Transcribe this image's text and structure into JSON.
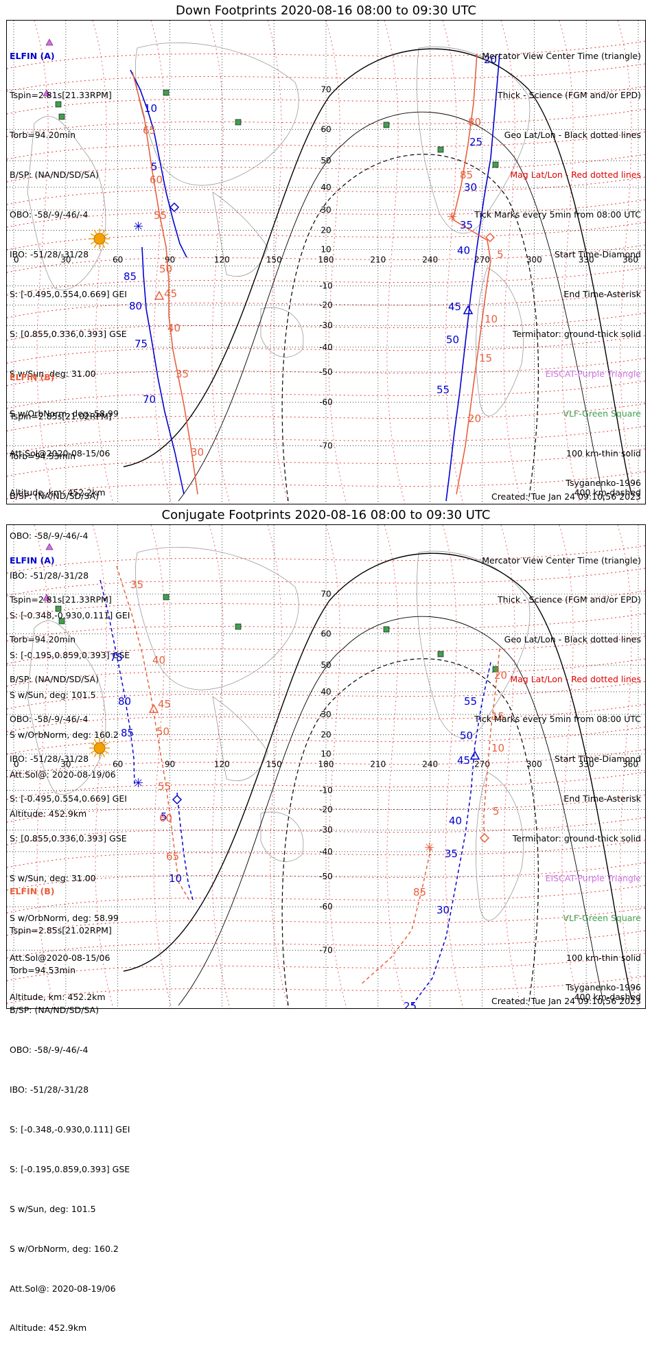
{
  "panels": [
    {
      "title": "Down Footprints 2020-08-16 08:00 to 09:30 UTC",
      "elfin_a": {
        "header": "ELFIN (A)",
        "lines": [
          "Tspin=2.81s[21.33RPM]",
          "Torb=94.20min",
          "B/SP: (NA/ND/SD/SA)",
          "OBO: -58/-9/-46/-4",
          "IBO: -51/28/-31/28",
          "S: [-0.495,0.554,0.669] GEI",
          "S: [0.855,0.336,0.393] GSE",
          "S w/Sun, deg: 31.00",
          "S w/OrbNorm, deg: 58.99",
          "Att.Sol@2020-08-15/06",
          "Altitude, km: 452.2km"
        ]
      },
      "elfin_b": {
        "header": "ELFIN (B)",
        "lines": [
          "Tspin=2.85s[21.02RPM]",
          "Torb=94.53min",
          "B/SP: (NA/ND/SD/SA)",
          "OBO: -58/-9/-46/-4",
          "IBO: -51/28/-31/28",
          "S: [-0.348,-0.930,0.111] GEI",
          "S: [-0.195,0.859,0.393] GSE",
          "S w/Sun, deg: 101.5",
          "S w/OrbNorm, deg: 160.2",
          "Att.Sol@: 2020-08-19/06",
          "Altitude: 452.9km"
        ]
      },
      "model": "Tsyganenko-1996",
      "created": "Created: Tue Jan 24 09:10:56 2023",
      "track_a": [
        [
          180,
          72
        ],
        [
          194,
          100
        ],
        [
          205,
          130
        ],
        [
          214,
          160
        ],
        [
          220,
          190
        ],
        [
          226,
          220
        ],
        [
          232,
          250
        ],
        [
          242,
          290
        ],
        [
          252,
          325
        ],
        [
          262,
          345
        ]
      ],
      "track_a2": [
        [
          197,
          330
        ],
        [
          199,
          370
        ],
        [
          203,
          420
        ],
        [
          210,
          460
        ],
        [
          220,
          520
        ],
        [
          230,
          570
        ],
        [
          245,
          630
        ],
        [
          258,
          690
        ]
      ],
      "track_b": [
        [
          183,
          75
        ],
        [
          200,
          140
        ],
        [
          212,
          220
        ],
        [
          222,
          280
        ],
        [
          232,
          330
        ],
        [
          236,
          380
        ],
        [
          236,
          430
        ],
        [
          242,
          480
        ],
        [
          258,
          560
        ],
        [
          268,
          620
        ],
        [
          278,
          690
        ]
      ]
    },
    {
      "title": "Conjugate Footprints 2020-08-16 08:00 to 09:30 UTC",
      "elfin_a": {
        "header": "ELFIN (A)",
        "lines": [
          "Tspin=2.81s[21.33RPM]",
          "Torb=94.20min",
          "B/SP: (NA/ND/SD/SA)",
          "OBO: -58/-9/-46/-4",
          "IBO: -51/28/-31/28",
          "S: [-0.495,0.554,0.669] GEI",
          "S: [0.855,0.336,0.393] GSE",
          "S w/Sun, deg: 31.00",
          "S w/OrbNorm, deg: 58.99",
          "Att.Sol@2020-08-15/06",
          "Altitude, km: 452.2km"
        ]
      },
      "elfin_b": {
        "header": "ELFIN (B)",
        "lines": [
          "Tspin=2.85s[21.02RPM]",
          "Torb=94.53min",
          "B/SP: (NA/ND/SD/SA)",
          "OBO: -58/-9/-46/-4",
          "IBO: -51/28/-31/28",
          "S: [-0.348,-0.930,0.111] GEI",
          "S: [-0.195,0.859,0.393] GSE",
          "S w/Sun, deg: 101.5",
          "S w/OrbNorm, deg: 160.2",
          "Att.Sol@: 2020-08-19/06",
          "Altitude: 452.9km"
        ]
      },
      "model": "Tsyganenko-1996",
      "created": "Created: Tue Jan 24 09:10:56 2023"
    }
  ],
  "legend": {
    "center": "Mercator View Center Time (triangle)",
    "science": "Thick - Science (FGM and/or EPD)",
    "geo": "Geo Lat/Lon - Black dotted lines",
    "mag": "Mag Lat/Lon - Red dotted lines",
    "ticks": "Tick Marks every 5min from 08:00 UTC",
    "start": "Start Time-Diamond",
    "end": "End Time-Asterisk",
    "terminator": "Terminator: ground-thick solid",
    "eiscat": "EISCAT-Purple Triangle",
    "vlf": "VLF-Green Square",
    "km100": "100 km-thin solid",
    "km400": "400 km-dashed"
  },
  "axes": {
    "lon_ticks": [
      "0",
      "30",
      "60",
      "90",
      "120",
      "150",
      "180",
      "210",
      "240",
      "270",
      "300",
      "330",
      "360"
    ],
    "lat_ticks": [
      {
        "v": "70",
        "y": 0.143
      },
      {
        "v": "60",
        "y": 0.225
      },
      {
        "v": "50",
        "y": 0.29
      },
      {
        "v": "40",
        "y": 0.345
      },
      {
        "v": "30",
        "y": 0.392
      },
      {
        "v": "20",
        "y": 0.434
      },
      {
        "v": "10",
        "y": 0.474
      },
      {
        "v": "-10",
        "y": 0.549
      },
      {
        "v": "-20",
        "y": 0.589
      },
      {
        "v": "-30",
        "y": 0.631
      },
      {
        "v": "-40",
        "y": 0.676
      },
      {
        "v": "-50",
        "y": 0.727
      },
      {
        "v": "-60",
        "y": 0.79
      },
      {
        "v": "-70",
        "y": 0.88
      }
    ]
  },
  "colors": {
    "elfin_a": "#0000d0",
    "elfin_b": "#e8603c",
    "mag_grid": "#e00000",
    "geo_grid": "#000000",
    "eiscat": "#d070e0",
    "vlf": "#40a050",
    "sun": "#f5a000"
  },
  "down_labels": {
    "a": [
      "10",
      "5",
      "85",
      "80",
      "75",
      "70",
      "20",
      "25",
      "30",
      "35",
      "40",
      "45",
      "50",
      "55"
    ],
    "b": [
      "65",
      "60",
      "55",
      "50",
      "45",
      "40",
      "35",
      "30",
      "80",
      "85",
      "5",
      "10",
      "15",
      "20"
    ]
  },
  "conj_labels": {
    "a": [
      "75",
      "80",
      "85",
      "5",
      "10",
      "55",
      "50",
      "45",
      "40",
      "35",
      "30",
      "25"
    ],
    "b": [
      "35",
      "40",
      "45",
      "50",
      "55",
      "60",
      "65",
      "20",
      "15",
      "10",
      "5",
      "85"
    ]
  }
}
